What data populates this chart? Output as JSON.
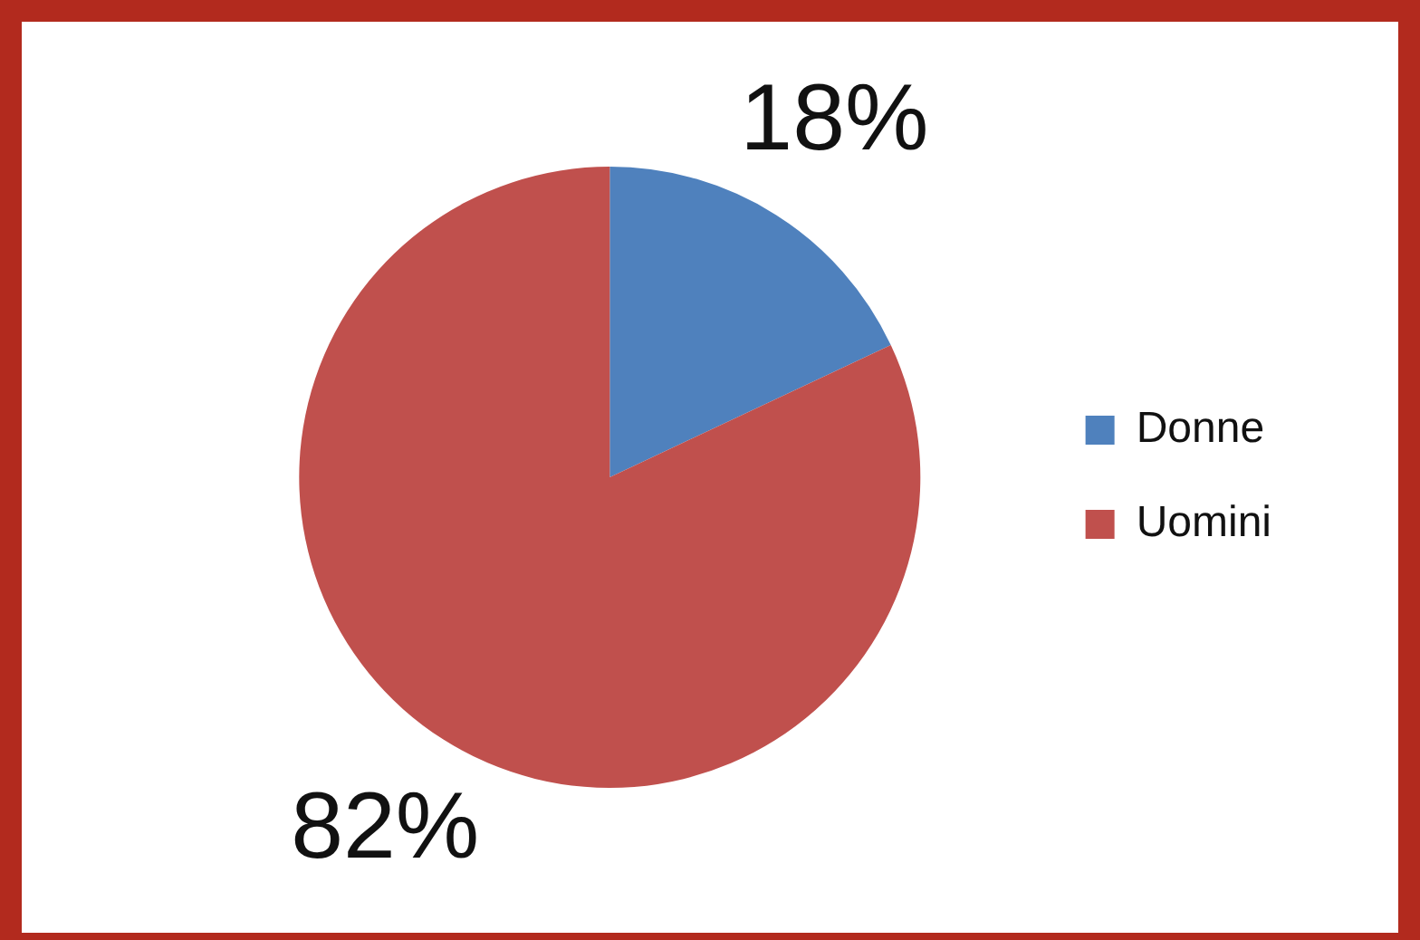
{
  "chart_data": {
    "type": "pie",
    "categories": [
      "Donne",
      "Uomini"
    ],
    "values": [
      18,
      82
    ],
    "colors": [
      "#4f81bd",
      "#c0504d"
    ],
    "value_labels": [
      "18%",
      "82%"
    ],
    "legend": "right"
  }
}
